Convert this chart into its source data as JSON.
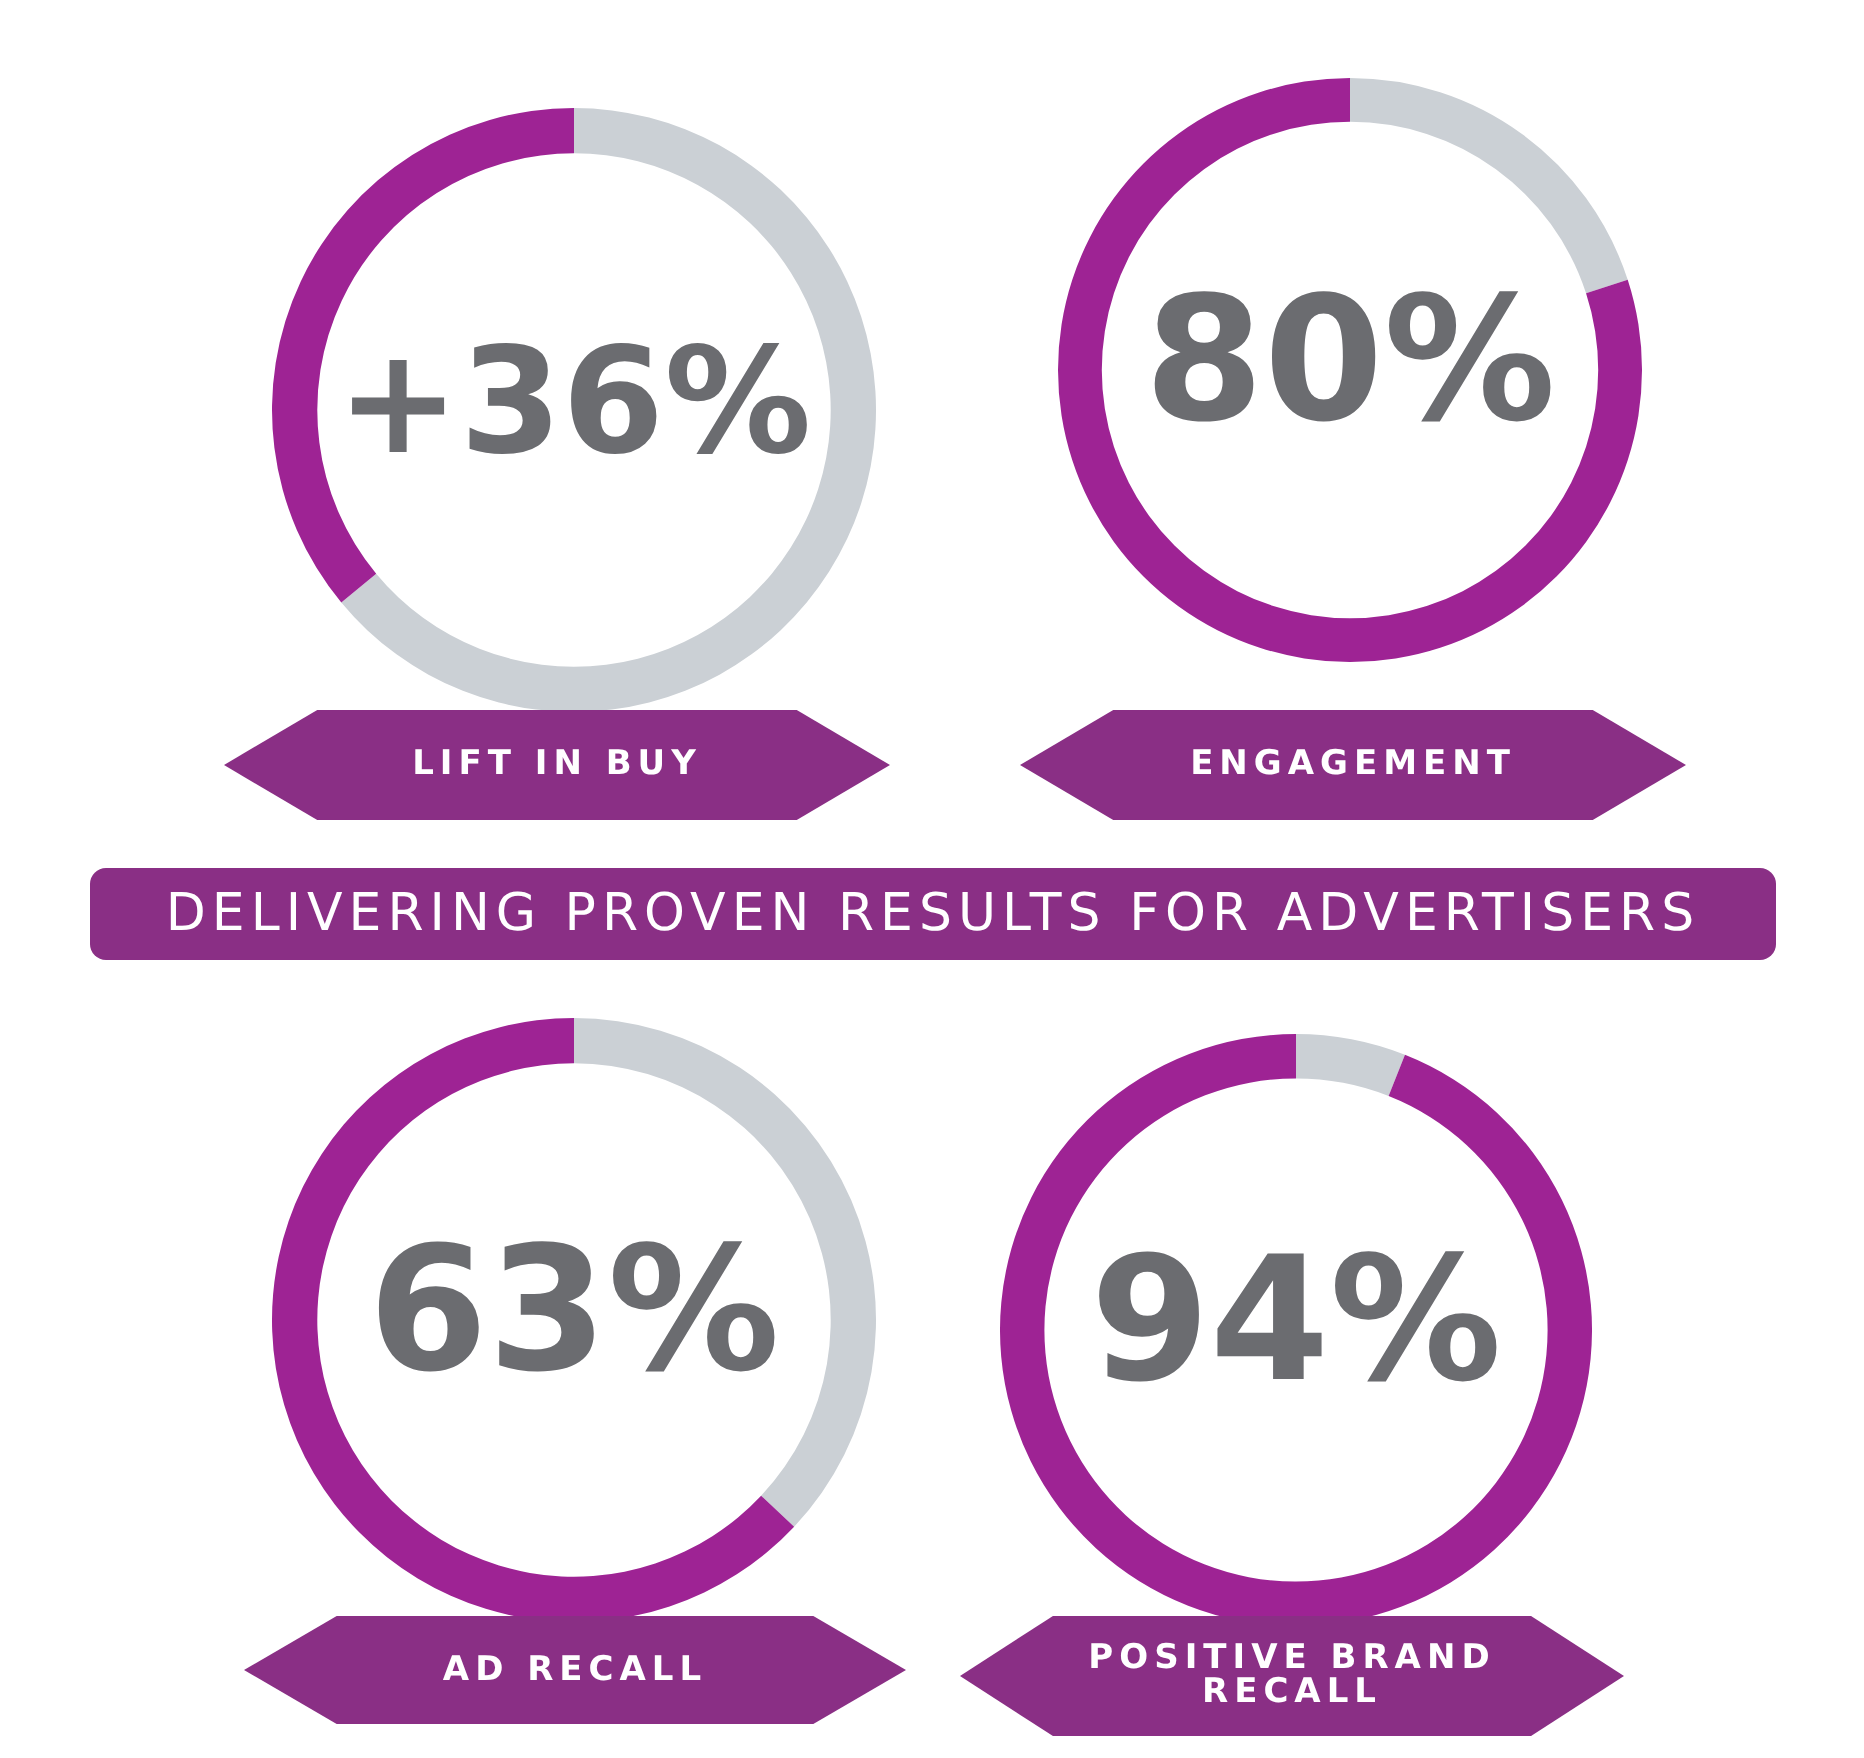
{
  "chart_data": [
    {
      "type": "donut",
      "title": "LIFT IN BUY",
      "categories": [
        null,
        null
      ],
      "values": [
        64,
        36
      ],
      "colors": [
        "#cbd0d5",
        "#9e2394"
      ],
      "value_labels": [
        null,
        "+36%"
      ]
    },
    {
      "type": "donut",
      "title": "ENGAGEMENT",
      "categories": [
        null,
        null
      ],
      "values": [
        20,
        80
      ],
      "colors": [
        "#cbd0d5",
        "#9e2394"
      ],
      "value_labels": [
        null,
        "80%"
      ]
    },
    {
      "type": "other",
      "title": "DELIVERING PROVEN RESULTS FOR ADVERTISERS"
    },
    {
      "type": "donut",
      "title": "AD RECALL",
      "categories": [
        null,
        null
      ],
      "values": [
        37,
        63
      ],
      "colors": [
        "#cbd0d5",
        "#9e2394"
      ],
      "value_labels": [
        null,
        "63%"
      ]
    },
    {
      "type": "donut",
      "title": "POSITIVE BRAND RECALL",
      "categories": [
        null,
        null
      ],
      "values": [
        6,
        94
      ],
      "colors": [
        "#cbd0d5",
        "#9e2394"
      ],
      "value_labels": [
        null,
        "94%"
      ]
    }
  ]
}
